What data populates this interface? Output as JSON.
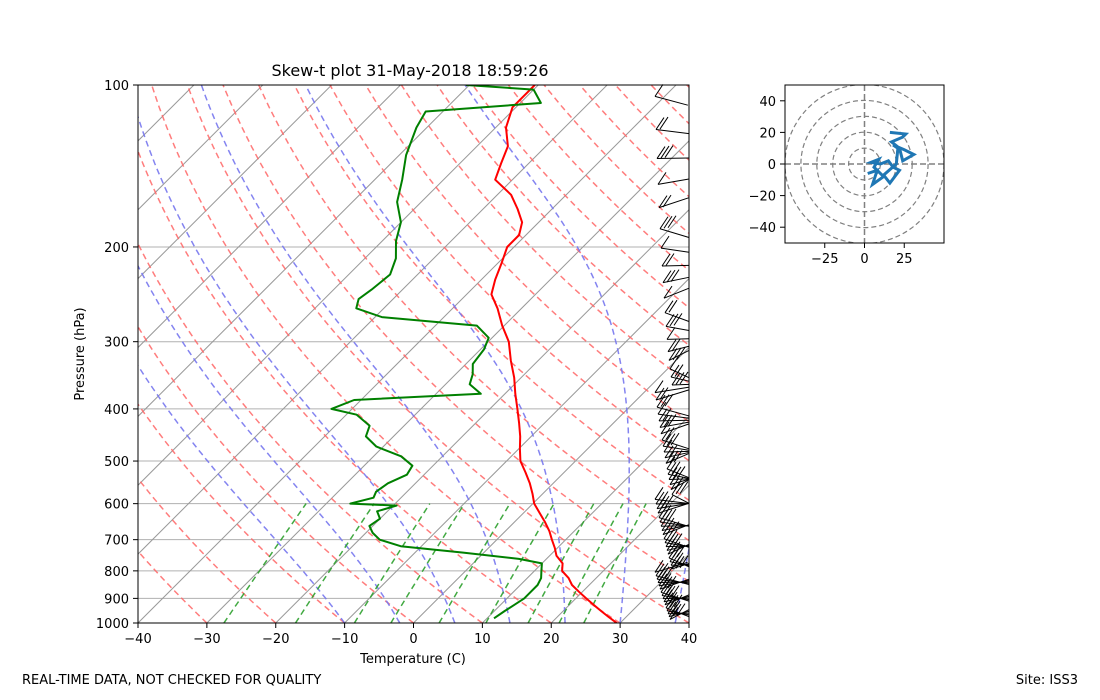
{
  "footer": {
    "quality_note": "REAL-TIME DATA, NOT CHECKED FOR QUALITY",
    "site": "Site: ISS3"
  },
  "colors": {
    "temperature": "#ff0000",
    "dewpoint": "#008000",
    "dry_adiabat": "#ff6666",
    "moist_adiabat": "#7777ee",
    "mixing_ratio": "#2ca02c",
    "isotherm": "#999999",
    "hodograph": "#1f77b4"
  },
  "chart_data": [
    {
      "type": "line",
      "subtype": "skew-t",
      "title": "Skew-t plot 31-May-2018 18:59:26",
      "xlabel": "Temperature (C)",
      "ylabel": "Pressure (hPa)",
      "xlim": [
        -40,
        40
      ],
      "ylim": [
        1000,
        100
      ],
      "y_scale": "log",
      "xticks": [
        -40,
        -30,
        -20,
        -10,
        0,
        10,
        20,
        30,
        40
      ],
      "yticks": [
        1000,
        900,
        800,
        700,
        600,
        500,
        400,
        300,
        200,
        100
      ],
      "grid": true,
      "series": [
        {
          "role": "temperature",
          "points": [
            [
              1000,
              29.5
            ],
            [
              975,
              27.5
            ],
            [
              950,
              25.5
            ],
            [
              925,
              23.5
            ],
            [
              900,
              21.5
            ],
            [
              875,
              19.5
            ],
            [
              850,
              17.5
            ],
            [
              825,
              16.0
            ],
            [
              800,
              14.0
            ],
            [
              775,
              13.0
            ],
            [
              750,
              11.0
            ],
            [
              725,
              9.6
            ],
            [
              700,
              8.0
            ],
            [
              675,
              6.4
            ],
            [
              650,
              4.5
            ],
            [
              625,
              2.4
            ],
            [
              600,
              0.2
            ],
            [
              575,
              -1.5
            ],
            [
              550,
              -3.4
            ],
            [
              525,
              -5.6
            ],
            [
              500,
              -8.0
            ],
            [
              475,
              -9.8
            ],
            [
              450,
              -11.6
            ],
            [
              425,
              -13.7
            ],
            [
              400,
              -16.0
            ],
            [
              375,
              -18.5
            ],
            [
              350,
              -21.0
            ],
            [
              325,
              -24.0
            ],
            [
              300,
              -27.0
            ],
            [
              280,
              -30.3
            ],
            [
              260,
              -33.5
            ],
            [
              245,
              -36.4
            ],
            [
              230,
              -38.0
            ],
            [
              215,
              -39.4
            ],
            [
              200,
              -41.0
            ],
            [
              190,
              -41.0
            ],
            [
              180,
              -42.4
            ],
            [
              170,
              -45.0
            ],
            [
              160,
              -48.0
            ],
            [
              150,
              -52.5
            ],
            [
              140,
              -54.0
            ],
            [
              130,
              -55.5
            ],
            [
              120,
              -58.5
            ],
            [
              110,
              -60.5
            ],
            [
              100,
              -60.5
            ]
          ]
        },
        {
          "role": "dewpoint",
          "points": [
            [
              980,
              11.0
            ],
            [
              950,
              11.5
            ],
            [
              925,
              12.0
            ],
            [
              900,
              12.5
            ],
            [
              875,
              12.5
            ],
            [
              850,
              12.5
            ],
            [
              825,
              12.0
            ],
            [
              800,
              11.0
            ],
            [
              775,
              10.0
            ],
            [
              760,
              6.0
            ],
            [
              740,
              -3.0
            ],
            [
              720,
              -13.0
            ],
            [
              700,
              -17.0
            ],
            [
              680,
              -19.0
            ],
            [
              660,
              -20.5
            ],
            [
              640,
              -20.0
            ],
            [
              620,
              -21.5
            ],
            [
              605,
              -19.5
            ],
            [
              600,
              -26.5
            ],
            [
              585,
              -24.0
            ],
            [
              570,
              -24.5
            ],
            [
              550,
              -24.0
            ],
            [
              530,
              -22.5
            ],
            [
              510,
              -23.0
            ],
            [
              490,
              -26.0
            ],
            [
              470,
              -31.0
            ],
            [
              450,
              -34.0
            ],
            [
              430,
              -35.0
            ],
            [
              410,
              -38.5
            ],
            [
              400,
              -43.0
            ],
            [
              385,
              -41.0
            ],
            [
              375,
              -23.5
            ],
            [
              360,
              -26.5
            ],
            [
              345,
              -27.5
            ],
            [
              330,
              -29.0
            ],
            [
              310,
              -29.5
            ],
            [
              295,
              -30.5
            ],
            [
              280,
              -34.0
            ],
            [
              270,
              -49.0
            ],
            [
              260,
              -54.0
            ],
            [
              250,
              -55.0
            ],
            [
              240,
              -54.5
            ],
            [
              225,
              -54.0
            ],
            [
              210,
              -55.5
            ],
            [
              195,
              -58.0
            ],
            [
              180,
              -60.0
            ],
            [
              165,
              -63.5
            ],
            [
              150,
              -66.0
            ],
            [
              135,
              -69.0
            ],
            [
              120,
              -71.5
            ],
            [
              112,
              -72.5
            ],
            [
              108,
              -57.0
            ],
            [
              102,
              -60.0
            ],
            [
              100,
              -70.5
            ]
          ]
        }
      ],
      "background_lines": [
        "isotherms",
        "dry adiabats",
        "moist adiabats",
        "mixing ratio lines"
      ],
      "wind_barbs": "right side, 100–1000 hPa"
    },
    {
      "type": "line",
      "subtype": "hodograph",
      "xlim": [
        -50,
        50
      ],
      "ylim": [
        -50,
        50
      ],
      "xticks": [
        -25,
        0,
        25
      ],
      "yticks": [
        -40,
        -20,
        0,
        20,
        40
      ],
      "rings": [
        10,
        20,
        30,
        40,
        50
      ],
      "series": [
        {
          "role": "wind",
          "points": [
            [
              2,
              -6
            ],
            [
              8,
              -4
            ],
            [
              5,
              -13
            ],
            [
              12,
              -8
            ],
            [
              6,
              -2
            ],
            [
              9,
              3
            ],
            [
              4,
              1
            ],
            [
              10,
              0
            ],
            [
              15,
              2
            ],
            [
              18,
              -2
            ],
            [
              22,
              -4
            ],
            [
              16,
              -12
            ],
            [
              12,
              -7
            ],
            [
              20,
              0
            ],
            [
              21,
              10
            ],
            [
              18,
              12
            ],
            [
              25,
              9
            ],
            [
              31,
              6
            ],
            [
              24,
              2
            ],
            [
              22,
              10
            ],
            [
              17,
              14
            ],
            [
              24,
              17
            ],
            [
              26,
              19
            ],
            [
              16,
              20
            ]
          ]
        }
      ]
    }
  ]
}
